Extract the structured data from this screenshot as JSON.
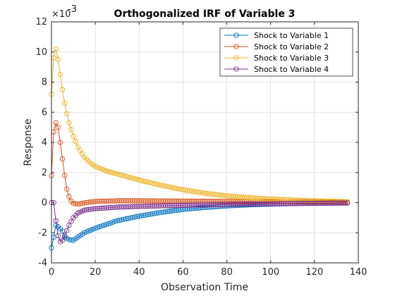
{
  "chart_data": {
    "type": "line",
    "title": "Orthogonalized IRF of Variable 3",
    "xlabel": "Observation Time",
    "ylabel": "Response",
    "exponent_label": "×10",
    "exponent_value": "-3",
    "xlim": [
      0,
      140
    ],
    "ylim": [
      -4,
      12
    ],
    "x_ticks": [
      "0",
      "20",
      "40",
      "60",
      "80",
      "100",
      "120",
      "140"
    ],
    "y_ticks": [
      "-4",
      "-2",
      "0",
      "2",
      "4",
      "6",
      "8",
      "10",
      "12"
    ],
    "legend_position": "top-right",
    "marker": "circle",
    "x_start": 0,
    "x_end": 135,
    "series": [
      {
        "name": "Shock to Variable 1",
        "color": "#0072BD",
        "keypoints": [
          [
            0,
            -3.0
          ],
          [
            1,
            -2.3
          ],
          [
            2,
            -1.5
          ],
          [
            3,
            -1.6
          ],
          [
            5,
            -1.9
          ],
          [
            6,
            -2.3
          ],
          [
            8,
            -2.45
          ],
          [
            10,
            -2.5
          ],
          [
            12,
            -2.3
          ],
          [
            15,
            -2.0
          ],
          [
            20,
            -1.7
          ],
          [
            25,
            -1.45
          ],
          [
            30,
            -1.2
          ],
          [
            35,
            -1.05
          ],
          [
            40,
            -0.9
          ],
          [
            50,
            -0.65
          ],
          [
            60,
            -0.45
          ],
          [
            70,
            -0.32
          ],
          [
            80,
            -0.22
          ],
          [
            90,
            -0.15
          ],
          [
            100,
            -0.1
          ],
          [
            110,
            -0.06
          ],
          [
            120,
            -0.04
          ],
          [
            135,
            -0.02
          ]
        ]
      },
      {
        "name": "Shock to Variable 2",
        "color": "#D95319",
        "keypoints": [
          [
            0,
            1.8
          ],
          [
            1,
            4.7
          ],
          [
            2,
            5.3
          ],
          [
            3,
            5.0
          ],
          [
            4,
            4.0
          ],
          [
            5,
            2.9
          ],
          [
            6,
            1.8
          ],
          [
            7,
            0.9
          ],
          [
            8,
            0.4
          ],
          [
            9,
            0.1
          ],
          [
            10,
            -0.05
          ],
          [
            12,
            -0.1
          ],
          [
            15,
            -0.02
          ],
          [
            20,
            0.08
          ],
          [
            30,
            0.12
          ],
          [
            40,
            0.12
          ],
          [
            60,
            0.1
          ],
          [
            80,
            0.08
          ],
          [
            100,
            0.06
          ],
          [
            120,
            0.04
          ],
          [
            135,
            0.03
          ]
        ]
      },
      {
        "name": "Shock to Variable 3",
        "color": "#EDB120",
        "keypoints": [
          [
            0,
            7.2
          ],
          [
            1,
            9.6
          ],
          [
            2,
            10.2
          ],
          [
            3,
            9.5
          ],
          [
            4,
            8.5
          ],
          [
            5,
            7.5
          ],
          [
            6,
            6.6
          ],
          [
            7,
            5.9
          ],
          [
            8,
            5.3
          ],
          [
            10,
            4.4
          ],
          [
            12,
            3.7
          ],
          [
            15,
            3.0
          ],
          [
            18,
            2.6
          ],
          [
            20,
            2.4
          ],
          [
            25,
            2.1
          ],
          [
            30,
            1.9
          ],
          [
            35,
            1.7
          ],
          [
            40,
            1.5
          ],
          [
            50,
            1.15
          ],
          [
            60,
            0.85
          ],
          [
            70,
            0.62
          ],
          [
            80,
            0.45
          ],
          [
            90,
            0.33
          ],
          [
            100,
            0.24
          ],
          [
            110,
            0.17
          ],
          [
            120,
            0.12
          ],
          [
            135,
            0.06
          ]
        ]
      },
      {
        "name": "Shock to Variable 4",
        "color": "#7E2F8E",
        "keypoints": [
          [
            0,
            0.0
          ],
          [
            1,
            0.0
          ],
          [
            2,
            -1.2
          ],
          [
            3,
            -2.2
          ],
          [
            4,
            -2.6
          ],
          [
            5,
            -2.5
          ],
          [
            6,
            -2.2
          ],
          [
            8,
            -1.5
          ],
          [
            10,
            -1.0
          ],
          [
            12,
            -0.7
          ],
          [
            15,
            -0.5
          ],
          [
            20,
            -0.4
          ],
          [
            30,
            -0.3
          ],
          [
            40,
            -0.25
          ],
          [
            60,
            -0.18
          ],
          [
            80,
            -0.12
          ],
          [
            100,
            -0.08
          ],
          [
            120,
            -0.05
          ],
          [
            135,
            -0.03
          ]
        ]
      }
    ]
  }
}
